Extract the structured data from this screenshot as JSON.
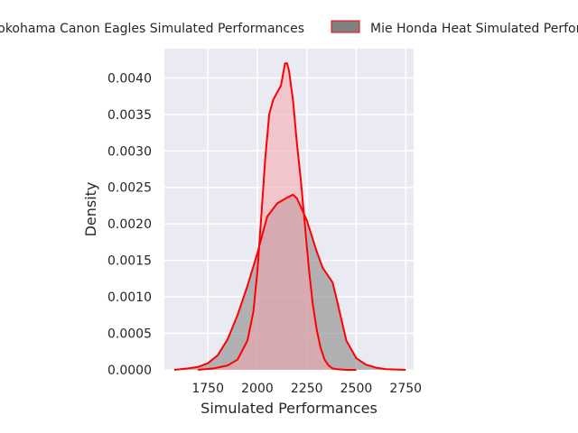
{
  "chart_data": {
    "type": "area",
    "title": "",
    "xlabel": "Simulated Performances",
    "ylabel": "Density",
    "xlim": [
      1530,
      2790
    ],
    "ylim": [
      0,
      0.0044
    ],
    "xticks": [
      1750,
      2000,
      2250,
      2500,
      2750
    ],
    "xtick_labels": [
      "1750",
      "2000",
      "2250",
      "2500",
      "2750"
    ],
    "yticks": [
      0,
      0.0005,
      0.001,
      0.0015,
      0.002,
      0.0025,
      0.003,
      0.0035,
      0.004
    ],
    "ytick_labels": [
      "0.0000",
      "0.0005",
      "0.0010",
      "0.0015",
      "0.0020",
      "0.0025",
      "0.0030",
      "0.0035",
      "0.0040"
    ],
    "grid": true,
    "background": "#eaeaf2",
    "legend_placement": "top",
    "series": [
      {
        "name": "Yokohama Canon Eagles Simulated Performances",
        "fill": "#f4a6ad",
        "edge": "#ff0000",
        "x": [
          1700,
          1780,
          1850,
          1900,
          1950,
          1980,
          2000,
          2020,
          2040,
          2060,
          2080,
          2100,
          2120,
          2140,
          2150,
          2160,
          2170,
          2180,
          2200,
          2220,
          2240,
          2260,
          2280,
          2300,
          2320,
          2340,
          2360,
          2380,
          2400,
          2450,
          2500
        ],
        "y": [
          0,
          2e-05,
          6e-05,
          0.00014,
          0.0004,
          0.0008,
          0.00135,
          0.0021,
          0.0029,
          0.0035,
          0.0037,
          0.0038,
          0.0039,
          0.0042,
          0.0042,
          0.0041,
          0.0039,
          0.0037,
          0.0031,
          0.0026,
          0.002,
          0.0014,
          0.0009,
          0.00055,
          0.0003,
          0.00014,
          6e-05,
          2e-05,
          1e-05,
          0,
          0
        ]
      },
      {
        "name": "Mie Honda Heat Simulated Performances",
        "fill": "#808080",
        "edge": "#ff0000",
        "x": [
          1580,
          1650,
          1700,
          1750,
          1800,
          1850,
          1900,
          1950,
          2000,
          2050,
          2100,
          2150,
          2180,
          2200,
          2250,
          2300,
          2330,
          2350,
          2380,
          2400,
          2450,
          2500,
          2550,
          2600,
          2650,
          2750
        ],
        "y": [
          0,
          2e-05,
          4e-05,
          9e-05,
          0.0002,
          0.00042,
          0.00075,
          0.00115,
          0.0016,
          0.0021,
          0.00228,
          0.00236,
          0.0024,
          0.00235,
          0.00205,
          0.00162,
          0.0014,
          0.00132,
          0.0012,
          0.00098,
          0.0004,
          0.00016,
          7e-05,
          3e-05,
          1e-05,
          0
        ]
      }
    ]
  }
}
